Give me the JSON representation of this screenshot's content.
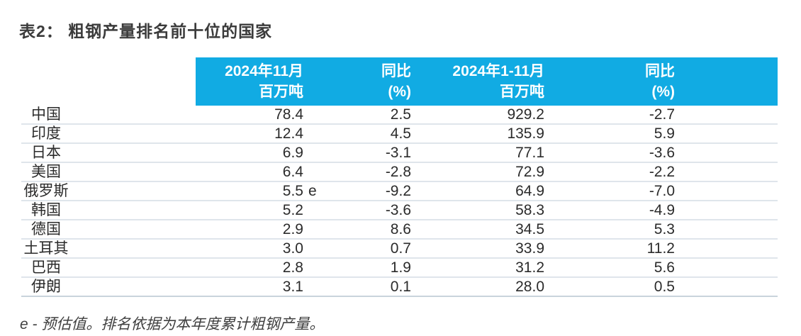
{
  "title": "表2： 粗钢产量排名前十位的国家",
  "header": {
    "col_nov": {
      "line1": "2024年11月",
      "line2": "百万吨"
    },
    "col_novyoy": {
      "line1": "同比",
      "line2": "(%)"
    },
    "col_cum": {
      "line1": "2024年1-11月",
      "line2": "百万吨"
    },
    "col_cumyoy": {
      "line1": "同比",
      "line2": "(%)"
    }
  },
  "table": {
    "rows": [
      {
        "country": "中国",
        "nov": "78.4",
        "nov_note": "",
        "nov_yoy": "2.5",
        "cum": "929.2",
        "cum_yoy": "-2.7"
      },
      {
        "country": "印度",
        "nov": "12.4",
        "nov_note": "",
        "nov_yoy": "4.5",
        "cum": "135.9",
        "cum_yoy": "5.9"
      },
      {
        "country": "日本",
        "nov": "6.9",
        "nov_note": "",
        "nov_yoy": "-3.1",
        "cum": "77.1",
        "cum_yoy": "-3.6"
      },
      {
        "country": "美国",
        "nov": "6.4",
        "nov_note": "",
        "nov_yoy": "-2.8",
        "cum": "72.9",
        "cum_yoy": "-2.2"
      },
      {
        "country": "俄罗斯",
        "nov": "5.5",
        "nov_note": "e",
        "nov_yoy": "-9.2",
        "cum": "64.9",
        "cum_yoy": "-7.0"
      },
      {
        "country": "韩国",
        "nov": "5.2",
        "nov_note": "",
        "nov_yoy": "-3.6",
        "cum": "58.3",
        "cum_yoy": "-4.9"
      },
      {
        "country": "德国",
        "nov": "2.9",
        "nov_note": "",
        "nov_yoy": "8.6",
        "cum": "34.5",
        "cum_yoy": "5.3"
      },
      {
        "country": "土耳其",
        "nov": "3.0",
        "nov_note": "",
        "nov_yoy": "0.7",
        "cum": "33.9",
        "cum_yoy": "11.2"
      },
      {
        "country": "巴西",
        "nov": "2.8",
        "nov_note": "",
        "nov_yoy": "1.9",
        "cum": "31.2",
        "cum_yoy": "5.6"
      },
      {
        "country": "伊朗",
        "nov": "3.1",
        "nov_note": "",
        "nov_yoy": "0.1",
        "cum": "28.0",
        "cum_yoy": "0.5"
      }
    ]
  },
  "footnote": "e - 预估值。排名依据为本年度累计粗钢产量。",
  "colors": {
    "header_bg": "#11abe3",
    "header_text": "#ffffff",
    "body_text": "#2b2b2b",
    "row_line": "#dfe5eb",
    "bottom_line": "#c9d4dc"
  }
}
